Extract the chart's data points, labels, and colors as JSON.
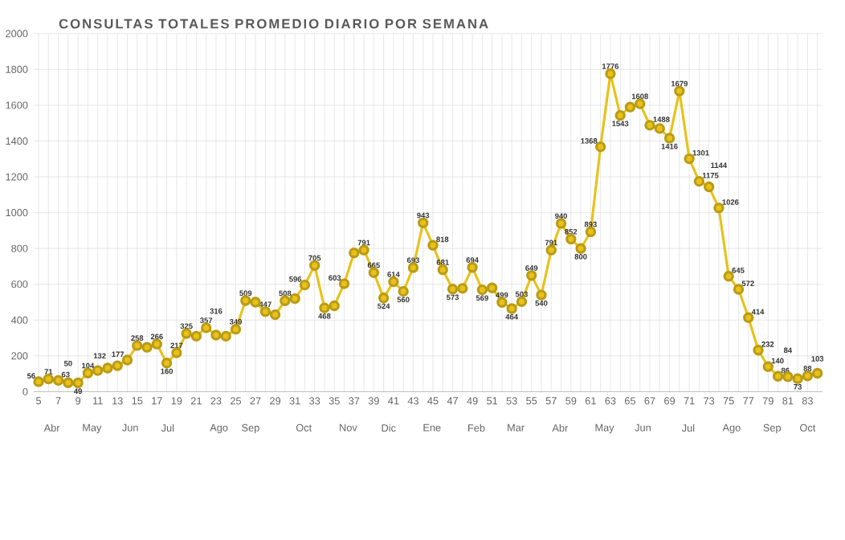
{
  "chart_data": {
    "type": "line",
    "title": "CONSULTAS TOTALES PROMEDIO DIARIO POR SEMANA",
    "categories": [
      "5",
      null,
      "7",
      null,
      "9",
      null,
      "11",
      null,
      "13",
      null,
      "15",
      null,
      "17",
      null,
      "19",
      null,
      "21",
      null,
      "23",
      null,
      "25",
      null,
      "27",
      null,
      "29",
      null,
      "31",
      null,
      "33",
      null,
      "35",
      null,
      "37",
      null,
      "39",
      null,
      "41",
      null,
      "43",
      null,
      "45",
      null,
      "47",
      null,
      "49",
      null,
      "51",
      null,
      "53",
      null,
      "55",
      null,
      "57",
      null,
      "59",
      null,
      "61",
      null,
      "63",
      null,
      "65",
      null,
      "67",
      null,
      "69",
      null,
      "71",
      null,
      "73",
      null,
      "75",
      null,
      "77",
      null,
      "79",
      null,
      "81",
      null,
      "83",
      null
    ],
    "values": [
      56,
      71,
      63,
      50,
      49,
      104,
      118,
      132,
      145,
      177,
      258,
      248,
      266,
      160,
      217,
      325,
      310,
      357,
      316,
      310,
      349,
      509,
      500,
      447,
      430,
      508,
      520,
      596,
      705,
      468,
      480,
      603,
      775,
      791,
      665,
      524,
      614,
      560,
      693,
      943,
      818,
      681,
      573,
      577,
      694,
      569,
      580,
      499,
      464,
      503,
      649,
      540,
      791,
      940,
      852,
      800,
      893,
      1368,
      1776,
      1543,
      1590,
      1608,
      1488,
      1470,
      1416,
      1679,
      1301,
      1175,
      1144,
      1026,
      645,
      572,
      414,
      232,
      140,
      86,
      84,
      73,
      88,
      103
    ],
    "value_labels": [
      "56",
      "71",
      "63",
      "50",
      "49",
      "104",
      null,
      "132",
      null,
      "177",
      "258",
      null,
      "266",
      "160",
      "217",
      "325",
      null,
      "357",
      "316",
      null,
      "349",
      "509",
      null,
      "447",
      null,
      "508",
      null,
      "596",
      "705",
      "468",
      null,
      "603",
      null,
      "791",
      "665",
      "524",
      "614",
      "560",
      "693",
      "943",
      "818",
      "681",
      "573",
      null,
      "694",
      "569",
      null,
      "499",
      "464",
      "503",
      "649",
      "540",
      "791",
      "940",
      "852",
      "800",
      "893",
      "1368",
      "1776",
      "1543",
      null,
      "1608",
      "1488",
      null,
      "1416",
      "1679",
      "1301",
      "1175",
      "1144",
      "1026",
      "645",
      "572",
      "414",
      "232",
      "140",
      "86",
      "84",
      "73",
      "88",
      "103"
    ],
    "color": "#e8c21a",
    "marker": "circle",
    "line_style": "solid",
    "ylim": [
      0,
      2000
    ],
    "yticks": [
      0,
      200,
      400,
      600,
      800,
      1000,
      1200,
      1400,
      1600,
      1800,
      2000
    ],
    "grid": true,
    "annotations": [
      "Abr",
      "May",
      "Jun",
      "Jul",
      "Ago",
      "Sep",
      "Oct",
      "Nov",
      "Dic",
      "Ene",
      "Feb",
      "Mar",
      "Abr",
      "May",
      "Jun",
      "Jul",
      "Ago",
      "Sep",
      "Oct"
    ]
  }
}
